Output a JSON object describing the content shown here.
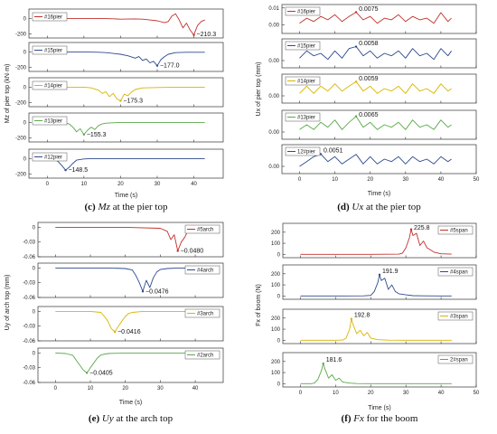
{
  "chart_data": [
    {
      "type": "line",
      "caption": [
        "(c) ",
        "Mz",
        " at the pier top"
      ],
      "xlabel": "Time (s)",
      "ylabel": "Mz of pier top (kN·m)",
      "xlim": [
        -5,
        48
      ],
      "xticks": [
        0,
        10,
        20,
        30,
        40
      ],
      "panels": [
        {
          "name": "#16pier",
          "color": "#c0312b",
          "ylim": [
            -250,
            120
          ],
          "yticks": [
            0,
            -200
          ],
          "annotation": "−210.3",
          "x": [
            0,
            8,
            10,
            12,
            14,
            16,
            18,
            20,
            22,
            24,
            26,
            28,
            30,
            32,
            33,
            34,
            35,
            36,
            37,
            38,
            39,
            40,
            41,
            42,
            43
          ],
          "y": [
            0,
            0,
            0,
            0,
            0,
            -2,
            -5,
            -10,
            -8,
            -6,
            -10,
            -20,
            -30,
            -55,
            -40,
            30,
            60,
            -20,
            -120,
            -60,
            -150,
            -210.3,
            -90,
            -40,
            -20
          ]
        },
        {
          "name": "#15pier",
          "color": "#2f4a8c",
          "ylim": [
            -250,
            120
          ],
          "yticks": [
            0,
            -200
          ],
          "annotation": "−177.0",
          "x": [
            0,
            10,
            14,
            16,
            18,
            20,
            22,
            24,
            25,
            26,
            27,
            28,
            29,
            30,
            31,
            32,
            33,
            35,
            38,
            41,
            43
          ],
          "y": [
            0,
            0,
            -5,
            -10,
            -20,
            -30,
            -50,
            -80,
            -60,
            -110,
            -90,
            -140,
            -120,
            -177,
            -100,
            -60,
            -30,
            -10,
            -5,
            -5,
            -5
          ]
        },
        {
          "name": "#14pier",
          "color": "#d9b400",
          "ylim": [
            -250,
            120
          ],
          "yticks": [
            0,
            -200
          ],
          "annotation": "−175.3",
          "x": [
            0,
            10,
            12,
            14,
            15,
            16,
            17,
            18,
            19,
            20,
            21,
            22,
            23,
            24,
            26,
            30,
            35,
            40,
            43
          ],
          "y": [
            0,
            0,
            -10,
            -40,
            -80,
            -60,
            -120,
            -80,
            -150,
            -175.3,
            -90,
            -110,
            -60,
            -30,
            -10,
            -5,
            0,
            0,
            0
          ]
        },
        {
          "name": "#13pier",
          "color": "#5aa84a",
          "ylim": [
            -250,
            120
          ],
          "yticks": [
            0,
            -200
          ],
          "annotation": "−155.3",
          "x": [
            0,
            4,
            6,
            7,
            8,
            9,
            10,
            11,
            12,
            13,
            14,
            15,
            16,
            18,
            20,
            25,
            30,
            35,
            40,
            43
          ],
          "y": [
            0,
            0,
            -20,
            -60,
            -120,
            -80,
            -155.3,
            -100,
            -60,
            -90,
            -40,
            -20,
            -10,
            -5,
            0,
            0,
            0,
            0,
            0,
            0
          ]
        },
        {
          "name": "#12pier",
          "color": "#2f4a8c",
          "ylim": [
            -250,
            120
          ],
          "yticks": [
            0,
            -200
          ],
          "annotation": "−148.5",
          "x": [
            0,
            2,
            3,
            4,
            5,
            6,
            7,
            8,
            10,
            12,
            15,
            20,
            30,
            40,
            43
          ],
          "y": [
            0,
            -10,
            -40,
            -90,
            -148.5,
            -110,
            -60,
            -20,
            -5,
            0,
            0,
            0,
            0,
            0,
            0
          ]
        }
      ]
    },
    {
      "type": "line",
      "caption": [
        "(d) ",
        "Ux",
        " at the pier top"
      ],
      "xlabel": "Time (s)",
      "ylabel": "Ux of pier top (mm)",
      "xlim": [
        -5,
        50
      ],
      "xticks": [
        0,
        10,
        20,
        30,
        40,
        50
      ],
      "panels": [
        {
          "name": "#16pier",
          "color": "#c0312b",
          "ylim": [
            -0.005,
            0.012
          ],
          "yticks": [
            0.01,
            0.0
          ],
          "yticklabels": [
            "0.01",
            "0.00"
          ],
          "annotation": "0.0075",
          "x": [
            0,
            2,
            4,
            6,
            8,
            10,
            12,
            14,
            16,
            18,
            20,
            22,
            24,
            26,
            28,
            30,
            32,
            34,
            36,
            38,
            40,
            42,
            43
          ],
          "y": [
            0.001,
            0.004,
            0.002,
            0.005,
            0.003,
            0.006,
            0.002,
            0.005,
            0.0075,
            0.003,
            0.005,
            0.001,
            0.004,
            0.003,
            0.006,
            0.002,
            0.005,
            0.003,
            0.004,
            0.001,
            0.0072,
            0.002,
            0.004
          ]
        },
        {
          "name": "#15pier",
          "color": "#2f4a8c",
          "ylim": [
            -0.003,
            0.009
          ],
          "yticks": [
            0.0
          ],
          "yticklabels": [
            "0.00"
          ],
          "annotation": "0.0058",
          "x": [
            0,
            2,
            4,
            6,
            8,
            10,
            12,
            14,
            16,
            18,
            20,
            22,
            24,
            26,
            28,
            30,
            32,
            34,
            36,
            38,
            40,
            42,
            43
          ],
          "y": [
            0.001,
            0.004,
            0.002,
            0.003,
            0.0005,
            0.004,
            0.001,
            0.005,
            0.0058,
            0.002,
            0.004,
            0.001,
            0.003,
            0.002,
            0.004,
            0.001,
            0.005,
            0.002,
            0.003,
            0.0005,
            0.005,
            0.002,
            0.004
          ]
        },
        {
          "name": "#14pier",
          "color": "#d9b400",
          "ylim": [
            -0.003,
            0.009
          ],
          "yticks": [
            0.0
          ],
          "yticklabels": [
            "0.00"
          ],
          "annotation": "0.0059",
          "x": [
            0,
            2,
            4,
            6,
            8,
            10,
            12,
            14,
            16,
            18,
            20,
            22,
            24,
            26,
            28,
            30,
            32,
            34,
            36,
            38,
            40,
            42,
            43
          ],
          "y": [
            0.001,
            0.004,
            0.001,
            0.004,
            0.002,
            0.005,
            0.002,
            0.004,
            0.0059,
            0.002,
            0.004,
            0.001,
            0.003,
            0.002,
            0.004,
            0.001,
            0.005,
            0.002,
            0.003,
            0.001,
            0.005,
            0.002,
            0.003
          ]
        },
        {
          "name": "#13pier",
          "color": "#5aa84a",
          "ylim": [
            -0.003,
            0.009
          ],
          "yticks": [
            0.0
          ],
          "yticklabels": [
            "0.00"
          ],
          "annotation": "0.0065",
          "x": [
            0,
            2,
            4,
            6,
            8,
            10,
            12,
            14,
            16,
            18,
            20,
            22,
            24,
            26,
            28,
            30,
            32,
            34,
            36,
            38,
            40,
            42,
            43
          ],
          "y": [
            0.001,
            0.003,
            0.001,
            0.004,
            0.002,
            0.005,
            0.001,
            0.004,
            0.0065,
            0.002,
            0.004,
            0.001,
            0.003,
            0.002,
            0.004,
            0.001,
            0.005,
            0.002,
            0.003,
            0.001,
            0.005,
            0.002,
            0.003
          ]
        },
        {
          "name": "12#pier",
          "color": "#2f4a8c",
          "ylim": [
            -0.003,
            0.009
          ],
          "yticks": [
            0.0
          ],
          "yticklabels": [
            "0.00"
          ],
          "annotation": "0.0051",
          "x": [
            0,
            2,
            4,
            6,
            8,
            10,
            12,
            14,
            16,
            18,
            20,
            22,
            24,
            26,
            28,
            30,
            32,
            34,
            36,
            38,
            40,
            42,
            43
          ],
          "y": [
            0.0,
            0.002,
            0.004,
            0.0051,
            0.002,
            0.004,
            0.001,
            0.003,
            0.005,
            0.001,
            0.004,
            0.001,
            0.003,
            0.002,
            0.004,
            0.001,
            0.004,
            0.002,
            0.003,
            0.001,
            0.004,
            0.002,
            0.003
          ]
        }
      ]
    },
    {
      "type": "line",
      "caption": [
        "(e) ",
        "Uy",
        " at the arch top"
      ],
      "xlabel": "Time (s)",
      "ylabel": "Uy of arch top (mm)",
      "xlim": [
        -5,
        48
      ],
      "xticks": [
        0,
        10,
        20,
        30,
        40
      ],
      "panels": [
        {
          "name": "#5arch",
          "color": "#c0312b",
          "ylim": [
            -0.06,
            0.01
          ],
          "yticks": [
            0,
            -0.03,
            -0.06
          ],
          "yticklabels": [
            "0",
            "-0.03",
            "-0.06"
          ],
          "annotation": "−0.0480",
          "x": [
            0,
            10,
            20,
            30,
            32,
            33,
            34,
            35,
            36,
            37,
            38,
            40,
            42,
            43
          ],
          "y": [
            0,
            0,
            0,
            -0.002,
            -0.008,
            -0.025,
            -0.015,
            -0.048,
            -0.03,
            -0.02,
            -0.006,
            -0.002,
            0,
            0
          ]
        },
        {
          "name": "#4arch",
          "color": "#2f4a8c",
          "ylim": [
            -0.06,
            0.01
          ],
          "yticks": [
            0,
            -0.03,
            -0.06
          ],
          "yticklabels": [
            "0",
            "-0.03",
            "-0.06"
          ],
          "annotation": "−0.0476",
          "x": [
            0,
            10,
            15,
            20,
            22,
            23,
            24,
            25,
            26,
            27,
            28,
            29,
            30,
            32,
            35,
            40,
            43
          ],
          "y": [
            0,
            0,
            0,
            -0.001,
            -0.004,
            -0.015,
            -0.03,
            -0.0476,
            -0.025,
            -0.04,
            -0.02,
            -0.008,
            -0.003,
            -0.001,
            0,
            0,
            0
          ]
        },
        {
          "name": "#3arch",
          "color": "#d9b400",
          "ylim": [
            -0.06,
            0.01
          ],
          "yticks": [
            0,
            -0.03,
            -0.06
          ],
          "yticklabels": [
            "0",
            "-0.03",
            "-0.06"
          ],
          "annotation": "−0.0416",
          "x": [
            0,
            10,
            13,
            14,
            15,
            16,
            17,
            18,
            19,
            20,
            21,
            22,
            25,
            30,
            40,
            43
          ],
          "y": [
            0,
            0,
            -0.002,
            -0.01,
            -0.02,
            -0.035,
            -0.0416,
            -0.03,
            -0.02,
            -0.01,
            -0.004,
            -0.002,
            0,
            0,
            0,
            0
          ]
        },
        {
          "name": "#2arch",
          "color": "#5aa84a",
          "ylim": [
            -0.06,
            0.01
          ],
          "yticks": [
            0,
            -0.03,
            -0.06
          ],
          "yticklabels": [
            "0",
            "-0.03",
            "-0.06"
          ],
          "annotation": "−0.0405",
          "x": [
            0,
            3,
            5,
            6,
            7,
            8,
            9,
            10,
            11,
            12,
            13,
            15,
            20,
            30,
            40,
            43
          ],
          "y": [
            0,
            -0.001,
            -0.005,
            -0.015,
            -0.025,
            -0.035,
            -0.0405,
            -0.03,
            -0.02,
            -0.01,
            -0.004,
            -0.001,
            0,
            0,
            0,
            0
          ]
        }
      ]
    },
    {
      "type": "line",
      "caption": [
        "(f) ",
        "Fx",
        " for the boom"
      ],
      "xlabel": "Time (s)",
      "ylabel": "Fx of boom (N)",
      "xlim": [
        -5,
        50
      ],
      "xticks": [
        0,
        10,
        20,
        30,
        40,
        50
      ],
      "panels": [
        {
          "name": "#5span",
          "color": "#c0312b",
          "ylim": [
            -30,
            280
          ],
          "yticks": [
            200,
            100,
            0
          ],
          "yticklabels": [
            "200",
            "100",
            "0"
          ],
          "annotation": "225.8",
          "x": [
            0,
            10,
            20,
            28,
            29,
            30,
            31,
            31.5,
            32,
            33,
            34,
            35,
            36,
            37,
            38,
            40,
            43
          ],
          "y": [
            0,
            0,
            0,
            2,
            10,
            60,
            150,
            225.8,
            170,
            190,
            80,
            120,
            60,
            40,
            20,
            5,
            2
          ]
        },
        {
          "name": "#4span",
          "color": "#2f4a8c",
          "ylim": [
            -30,
            280
          ],
          "yticks": [
            200,
            100,
            0
          ],
          "yticklabels": [
            "200",
            "100",
            "0"
          ],
          "annotation": "191.9",
          "x": [
            0,
            10,
            18,
            20,
            21,
            22,
            22.5,
            23,
            24,
            25,
            26,
            27,
            28,
            30,
            32,
            35,
            40,
            43
          ],
          "y": [
            0,
            0,
            1,
            5,
            40,
            120,
            191.9,
            140,
            160,
            60,
            100,
            40,
            20,
            10,
            3,
            1,
            0,
            0
          ]
        },
        {
          "name": "#3span",
          "color": "#d9b400",
          "ylim": [
            -30,
            280
          ],
          "yticks": [
            200,
            100,
            0
          ],
          "yticklabels": [
            "200",
            "100",
            "0"
          ],
          "annotation": "192.8",
          "x": [
            0,
            10,
            12,
            13,
            14,
            14.5,
            15,
            16,
            17,
            18,
            19,
            20,
            22,
            25,
            30,
            40,
            43
          ],
          "y": [
            0,
            0,
            2,
            20,
            100,
            192.8,
            140,
            60,
            90,
            40,
            70,
            20,
            5,
            1,
            0,
            0,
            0
          ]
        },
        {
          "name": "2#span",
          "color": "#5aa84a",
          "ylim": [
            -30,
            280
          ],
          "yticks": [
            200,
            100,
            0
          ],
          "yticklabels": [
            "200",
            "100",
            "0"
          ],
          "annotation": "181.6",
          "x": [
            0,
            3,
            4,
            5,
            6,
            6.5,
            7,
            8,
            9,
            10,
            11,
            12,
            14,
            16,
            20,
            30,
            40,
            43
          ],
          "y": [
            0,
            0,
            5,
            40,
            120,
            181.6,
            130,
            50,
            80,
            30,
            50,
            15,
            5,
            1,
            0,
            0,
            0,
            0
          ]
        }
      ]
    }
  ]
}
